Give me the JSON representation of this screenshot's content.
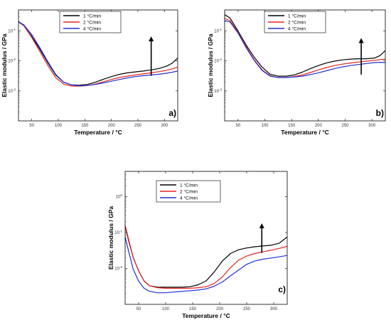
{
  "chart_data": [
    {
      "type": "line",
      "panel": "a)",
      "title": "",
      "xlabel": "Temperature / °C",
      "ylabel": "Elastic modulus / GPa",
      "xlim": [
        25,
        325
      ],
      "ylim": [
        0.0001,
        0.5
      ],
      "yscale": "log",
      "xticks": [
        50,
        100,
        150,
        200,
        250,
        300
      ],
      "yticks": [
        {
          "value": 0.001,
          "base": "10",
          "exp": "-3"
        },
        {
          "value": 0.01,
          "base": "10",
          "exp": "-2"
        },
        {
          "value": 0.1,
          "base": "10",
          "exp": "-1"
        }
      ],
      "legend_position": "top-center",
      "arrow": {
        "x": 275,
        "y_from": 0.0032,
        "y_to": 0.066
      },
      "series": [
        {
          "name": "1 °C/min",
          "color": "#000000",
          "x": [
            25,
            35,
            50,
            65,
            80,
            95,
            110,
            125,
            140,
            155,
            170,
            185,
            200,
            215,
            230,
            245,
            260,
            275,
            290,
            305,
            315,
            325
          ],
          "y": [
            0.2,
            0.15,
            0.065,
            0.025,
            0.0088,
            0.0034,
            0.00195,
            0.00158,
            0.00155,
            0.00165,
            0.00195,
            0.00245,
            0.003,
            0.00355,
            0.004,
            0.0043,
            0.0046,
            0.005,
            0.0056,
            0.0068,
            0.0085,
            0.0125
          ]
        },
        {
          "name": "2 °C/min",
          "color": "#e8251f",
          "x": [
            25,
            35,
            50,
            65,
            80,
            95,
            110,
            125,
            140,
            155,
            170,
            185,
            200,
            215,
            230,
            245,
            260,
            275,
            290,
            305,
            315,
            325
          ],
          "y": [
            0.21,
            0.15,
            0.06,
            0.021,
            0.0072,
            0.0028,
            0.00168,
            0.00145,
            0.00145,
            0.0015,
            0.0017,
            0.002,
            0.0024,
            0.0028,
            0.0031,
            0.0034,
            0.0037,
            0.004,
            0.0044,
            0.0049,
            0.0054,
            0.0062
          ]
        },
        {
          "name": "4 °C/min",
          "color": "#1f31d6",
          "x": [
            25,
            35,
            50,
            65,
            80,
            95,
            110,
            125,
            140,
            155,
            170,
            185,
            200,
            215,
            230,
            245,
            260,
            275,
            290,
            305,
            315,
            325
          ],
          "y": [
            0.2,
            0.16,
            0.075,
            0.028,
            0.0096,
            0.0036,
            0.00195,
            0.00158,
            0.00148,
            0.00152,
            0.00165,
            0.00185,
            0.0021,
            0.0024,
            0.0027,
            0.003,
            0.0032,
            0.0034,
            0.0036,
            0.0039,
            0.0042,
            0.0046
          ]
        }
      ]
    },
    {
      "type": "line",
      "panel": "b)",
      "title": "",
      "xlabel": "Temperature / °C",
      "ylabel": "Elastic modulus / GPa",
      "xlim": [
        25,
        325
      ],
      "ylim": [
        0.0001,
        0.5
      ],
      "yscale": "log",
      "xticks": [
        50,
        100,
        150,
        200,
        250,
        300
      ],
      "yticks": [
        {
          "value": 0.001,
          "base": "10",
          "exp": "-3"
        },
        {
          "value": 0.01,
          "base": "10",
          "exp": "-2"
        },
        {
          "value": 0.1,
          "base": "10",
          "exp": "-1"
        }
      ],
      "legend_position": "top-center",
      "arrow": {
        "x": 280,
        "y_from": 0.0035,
        "y_to": 0.058
      },
      "series": [
        {
          "name": "1 °C/min",
          "color": "#000000",
          "x": [
            25,
            35,
            50,
            65,
            80,
            95,
            110,
            125,
            140,
            155,
            170,
            185,
            200,
            215,
            230,
            245,
            260,
            275,
            290,
            305,
            315,
            325
          ],
          "y": [
            0.35,
            0.27,
            0.1,
            0.034,
            0.0135,
            0.0062,
            0.0036,
            0.0031,
            0.0031,
            0.0034,
            0.0042,
            0.0055,
            0.007,
            0.0085,
            0.0098,
            0.0108,
            0.0115,
            0.0118,
            0.0118,
            0.0125,
            0.015,
            0.022
          ]
        },
        {
          "name": "2 °C/min",
          "color": "#e8251f",
          "x": [
            25,
            35,
            50,
            65,
            80,
            95,
            110,
            125,
            140,
            155,
            170,
            185,
            200,
            215,
            230,
            245,
            260,
            275,
            290,
            305,
            315,
            325
          ],
          "y": [
            0.26,
            0.22,
            0.09,
            0.03,
            0.011,
            0.005,
            0.0032,
            0.0028,
            0.0028,
            0.003,
            0.0034,
            0.0041,
            0.005,
            0.006,
            0.007,
            0.0078,
            0.0085,
            0.0092,
            0.0098,
            0.0105,
            0.011,
            0.0115
          ]
        },
        {
          "name": "4 °C/min",
          "color": "#1f31d6",
          "x": [
            25,
            35,
            50,
            65,
            80,
            95,
            110,
            125,
            140,
            155,
            170,
            185,
            200,
            215,
            230,
            245,
            260,
            275,
            290,
            305,
            315,
            325
          ],
          "y": [
            0.22,
            0.2,
            0.085,
            0.028,
            0.0105,
            0.0048,
            0.0031,
            0.0028,
            0.0028,
            0.0029,
            0.0031,
            0.0035,
            0.004,
            0.0047,
            0.0055,
            0.0063,
            0.007,
            0.0076,
            0.0082,
            0.0088,
            0.009,
            0.0088
          ]
        }
      ]
    },
    {
      "type": "line",
      "panel": "c)",
      "title": "",
      "xlabel": "Temperature / °C",
      "ylabel": "Elastic modulus / GPa",
      "xlim": [
        25,
        325
      ],
      "ylim": [
        0.001,
        5
      ],
      "yscale": "log",
      "xticks": [
        50,
        100,
        150,
        200,
        250,
        300
      ],
      "yticks": [
        {
          "value": 0.01,
          "base": "10",
          "exp": "-2"
        },
        {
          "value": 0.1,
          "base": "10",
          "exp": "-1"
        },
        {
          "value": 1,
          "base": "10",
          "exp": "0"
        }
      ],
      "legend_position": "top-center",
      "arrow": {
        "x": 278,
        "y_from": 0.027,
        "y_to": 0.18
      },
      "series": [
        {
          "name": "1 °C/min",
          "color": "#000000",
          "x": [
            25,
            32,
            40,
            50,
            60,
            70,
            85,
            100,
            115,
            130,
            145,
            160,
            175,
            190,
            205,
            220,
            235,
            250,
            265,
            280,
            295,
            310,
            325
          ],
          "y": [
            0.15,
            0.055,
            0.02,
            0.0085,
            0.0045,
            0.0033,
            0.003,
            0.003,
            0.003,
            0.003,
            0.0031,
            0.0035,
            0.0045,
            0.008,
            0.016,
            0.026,
            0.033,
            0.037,
            0.04,
            0.042,
            0.044,
            0.05,
            0.075
          ]
        },
        {
          "name": "2 °C/min",
          "color": "#e8251f",
          "x": [
            25,
            32,
            40,
            50,
            60,
            70,
            85,
            100,
            115,
            130,
            145,
            160,
            175,
            190,
            205,
            220,
            235,
            250,
            265,
            280,
            295,
            310,
            325
          ],
          "y": [
            0.16,
            0.06,
            0.02,
            0.0085,
            0.0045,
            0.0033,
            0.0029,
            0.0028,
            0.0028,
            0.0028,
            0.0028,
            0.0029,
            0.0031,
            0.0038,
            0.0058,
            0.0105,
            0.017,
            0.022,
            0.026,
            0.029,
            0.032,
            0.036,
            0.041
          ]
        },
        {
          "name": "4 °C/min",
          "color": "#1f31d6",
          "x": [
            25,
            32,
            40,
            50,
            60,
            70,
            85,
            100,
            115,
            130,
            145,
            160,
            175,
            190,
            205,
            220,
            235,
            250,
            265,
            280,
            295,
            310,
            325
          ],
          "y": [
            0.075,
            0.028,
            0.0095,
            0.0044,
            0.0028,
            0.0023,
            0.0021,
            0.0021,
            0.0022,
            0.0023,
            0.0024,
            0.0025,
            0.0027,
            0.0032,
            0.0042,
            0.0062,
            0.009,
            0.013,
            0.016,
            0.018,
            0.0195,
            0.021,
            0.023
          ]
        }
      ]
    }
  ]
}
